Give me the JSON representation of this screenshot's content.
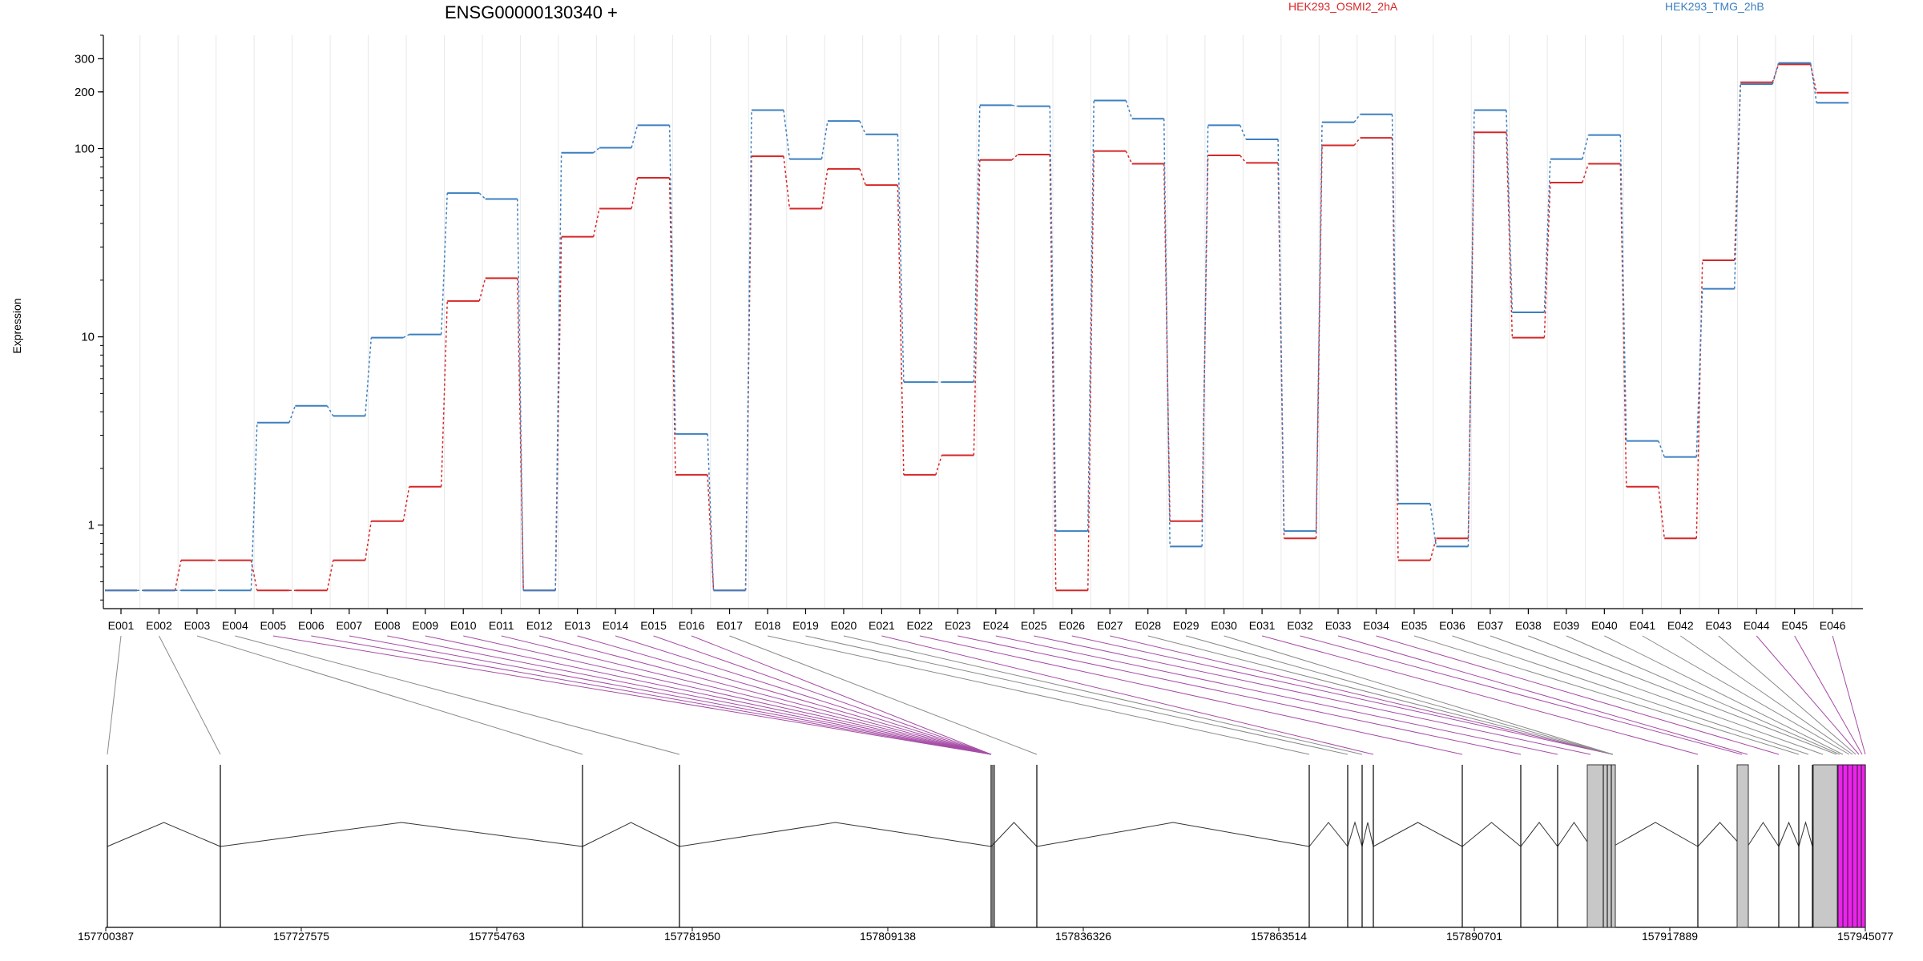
{
  "chart_data": {
    "type": "line",
    "title": "ENSG00000130340 +",
    "ylabel": "Expression",
    "yscale": "log",
    "ylim": [
      0.36,
      400
    ],
    "yticks": [
      1,
      10,
      100,
      200,
      300
    ],
    "grid": "vertical",
    "legend_placement": "top",
    "categories": [
      "E001",
      "E002",
      "E003",
      "E004",
      "E005",
      "E006",
      "E007",
      "E008",
      "E009",
      "E010",
      "E011",
      "E012",
      "E013",
      "E014",
      "E015",
      "E016",
      "E017",
      "E018",
      "E019",
      "E020",
      "E021",
      "E022",
      "E023",
      "E024",
      "E025",
      "E026",
      "E027",
      "E028",
      "E029",
      "E030",
      "E031",
      "E032",
      "E033",
      "E034",
      "E035",
      "E036",
      "E037",
      "E038",
      "E039",
      "E040",
      "E041",
      "E042",
      "E043",
      "E044",
      "E045",
      "E046"
    ],
    "series": [
      {
        "name": "HEK293_OSMI2_2hA",
        "color": "#d62728",
        "values": [
          0.45,
          0.45,
          0.65,
          0.65,
          0.45,
          0.45,
          0.65,
          1.05,
          1.6,
          15.5,
          20.5,
          0.45,
          34,
          48,
          70,
          1.85,
          0.45,
          91,
          48,
          78,
          64,
          1.85,
          2.35,
          87,
          93,
          0.45,
          97,
          83,
          1.05,
          92,
          84,
          0.85,
          104,
          114,
          0.65,
          0.85,
          122,
          9.9,
          66,
          83,
          1.6,
          0.85,
          25.5,
          225,
          280,
          198
        ]
      },
      {
        "name": "HEK293_TMG_2hB",
        "color": "#3c7fc0",
        "values": [
          0.45,
          0.45,
          0.45,
          0.45,
          3.5,
          4.3,
          3.8,
          9.9,
          10.3,
          58,
          54,
          0.45,
          95,
          101,
          133,
          3.05,
          0.45,
          160,
          88,
          140,
          119,
          5.75,
          5.75,
          170,
          168,
          0.93,
          180,
          144,
          0.77,
          133,
          112,
          0.93,
          138,
          152,
          1.3,
          0.77,
          160,
          13.5,
          88,
          118,
          2.8,
          2.3,
          18,
          220,
          285,
          175
        ]
      }
    ],
    "gene_track": {
      "coord_ticks": [
        157700387,
        157727575,
        157754763,
        157781950,
        157809138,
        157836326,
        157863514,
        157890701,
        157917889,
        157945077
      ]
    }
  }
}
